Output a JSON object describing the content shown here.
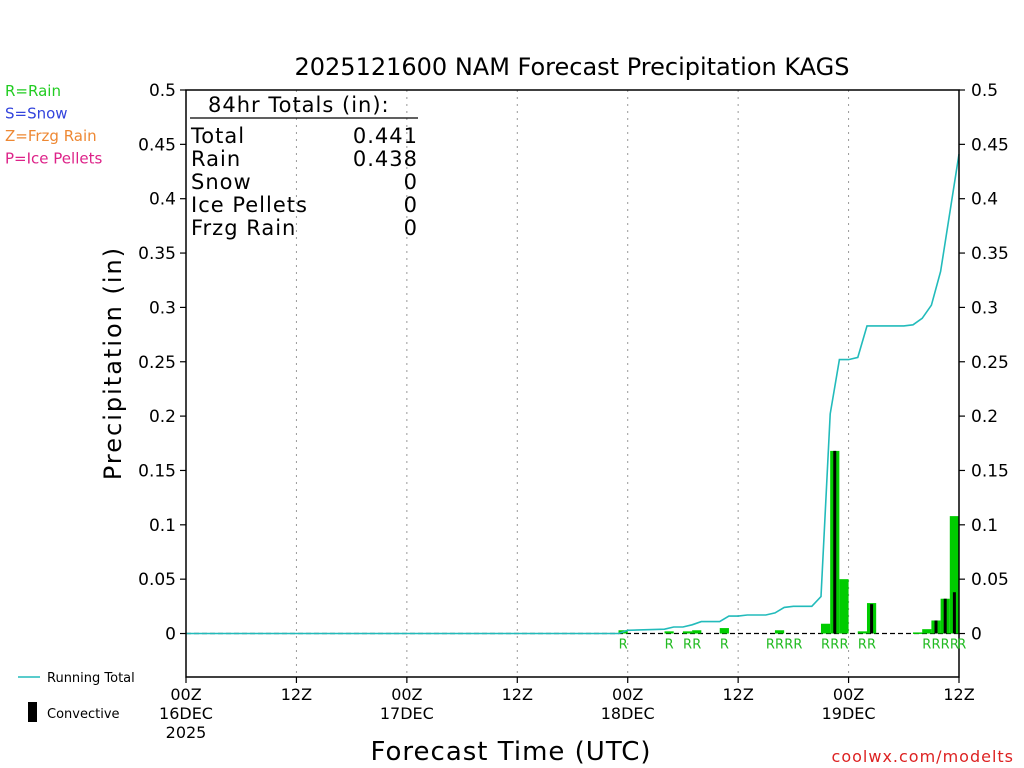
{
  "chart_data": {
    "type": "bar",
    "title": "2025121600 NAM Forecast Precipitation KAGS",
    "ylabel": "Precipitation (in)",
    "xlabel": "Forecast Time (UTC)",
    "ylim": [
      -0.04,
      0.5
    ],
    "xlim_hours": [
      0,
      84
    ],
    "yticks": [
      "0.5",
      "0.45",
      "0.4",
      "0.35",
      "0.3",
      "0.25",
      "0.2",
      "0.15",
      "0.1",
      "0.05",
      "0"
    ],
    "xticks": [
      {
        "hour": 0,
        "label": "00Z",
        "sub": "16DEC",
        "sub2": "2025",
        "grid": false
      },
      {
        "hour": 12,
        "label": "12Z",
        "sub": "",
        "sub2": "",
        "grid": true
      },
      {
        "hour": 24,
        "label": "00Z",
        "sub": "17DEC",
        "sub2": "",
        "grid": true
      },
      {
        "hour": 36,
        "label": "12Z",
        "sub": "",
        "sub2": "",
        "grid": true
      },
      {
        "hour": 48,
        "label": "00Z",
        "sub": "18DEC",
        "sub2": "",
        "grid": true
      },
      {
        "hour": 60,
        "label": "12Z",
        "sub": "",
        "sub2": "",
        "grid": true
      },
      {
        "hour": 72,
        "label": "00Z",
        "sub": "19DEC",
        "sub2": "",
        "grid": true
      },
      {
        "hour": 84,
        "label": "12Z",
        "sub": "",
        "sub2": "",
        "grid": false
      }
    ],
    "legend_types": [
      {
        "text": "R=Rain",
        "color": "#22cc22"
      },
      {
        "text": "S=Snow",
        "color": "#3344dd"
      },
      {
        "text": "Z=Frzg Rain",
        "color": "#ee8833"
      },
      {
        "text": "P=Ice Pellets",
        "color": "#dd2288"
      }
    ],
    "totals": {
      "title": "84hr Totals (in):",
      "rows": [
        {
          "label": "Total",
          "value": "0.441"
        },
        {
          "label": "Rain",
          "value": "0.438"
        },
        {
          "label": "Snow",
          "value": "0"
        },
        {
          "label": "Ice Pellets",
          "value": "0"
        },
        {
          "label": "Frzg Rain",
          "value": "0"
        }
      ]
    },
    "series": [
      {
        "name": "Running Total",
        "color": "#22bbbb",
        "points": [
          [
            0,
            0
          ],
          [
            47,
            0
          ],
          [
            48,
            0.003
          ],
          [
            52,
            0.004
          ],
          [
            53,
            0.006
          ],
          [
            54,
            0.006
          ],
          [
            55,
            0.008
          ],
          [
            56,
            0.011
          ],
          [
            58,
            0.011
          ],
          [
            59,
            0.016
          ],
          [
            60,
            0.016
          ],
          [
            61,
            0.017
          ],
          [
            63,
            0.017
          ],
          [
            64,
            0.019
          ],
          [
            65,
            0.024
          ],
          [
            66,
            0.025
          ],
          [
            68,
            0.025
          ],
          [
            69,
            0.034
          ],
          [
            70,
            0.202
          ],
          [
            71,
            0.252
          ],
          [
            72,
            0.252
          ],
          [
            73,
            0.254
          ],
          [
            74,
            0.283
          ],
          [
            78,
            0.283
          ],
          [
            79,
            0.284
          ],
          [
            80,
            0.29
          ],
          [
            81,
            0.302
          ],
          [
            82,
            0.333
          ],
          [
            84,
            0.441
          ]
        ]
      },
      {
        "name": "Convective",
        "color": "#000000"
      }
    ],
    "rain_bars": [
      {
        "hour": 47.5,
        "value": 0.003
      },
      {
        "hour": 52.5,
        "value": 0.002
      },
      {
        "hour": 54.5,
        "value": 0.002
      },
      {
        "hour": 55.5,
        "value": 0.003
      },
      {
        "hour": 58.5,
        "value": 0.005
      },
      {
        "hour": 64.5,
        "value": 0.003
      },
      {
        "hour": 69.5,
        "value": 0.009
      },
      {
        "hour": 70.5,
        "value": 0.168
      },
      {
        "hour": 71.5,
        "value": 0.05
      },
      {
        "hour": 73.5,
        "value": 0.002
      },
      {
        "hour": 74.5,
        "value": 0.028
      },
      {
        "hour": 79.5,
        "value": 0.001
      },
      {
        "hour": 80.5,
        "value": 0.004
      },
      {
        "hour": 81.5,
        "value": 0.012
      },
      {
        "hour": 82.5,
        "value": 0.032
      },
      {
        "hour": 83.5,
        "value": 0.108
      }
    ],
    "convective_bars": [
      {
        "hour": 70.5,
        "value": 0.168
      },
      {
        "hour": 74.5,
        "value": 0.027
      },
      {
        "hour": 81.5,
        "value": 0.012
      },
      {
        "hour": 82.5,
        "value": 0.032
      },
      {
        "hour": 83.5,
        "value": 0.038
      }
    ],
    "type_markers": [
      {
        "hour": 47.5,
        "text": "R"
      },
      {
        "hour": 52.5,
        "text": "R"
      },
      {
        "hour": 54.5,
        "text": "R"
      },
      {
        "hour": 55.5,
        "text": "R"
      },
      {
        "hour": 58.5,
        "text": "R"
      },
      {
        "hour": 63.5,
        "text": "R"
      },
      {
        "hour": 64.5,
        "text": "R"
      },
      {
        "hour": 65.5,
        "text": "R"
      },
      {
        "hour": 66.5,
        "text": "R"
      },
      {
        "hour": 69.5,
        "text": "R"
      },
      {
        "hour": 70.5,
        "text": "R"
      },
      {
        "hour": 71.5,
        "text": "R"
      },
      {
        "hour": 73.5,
        "text": "R"
      },
      {
        "hour": 74.5,
        "text": "R"
      },
      {
        "hour": 80.5,
        "text": "R"
      },
      {
        "hour": 81.5,
        "text": "R"
      },
      {
        "hour": 82.5,
        "text": "R"
      },
      {
        "hour": 83.5,
        "text": "R"
      },
      {
        "hour": 84.3,
        "text": "R"
      }
    ],
    "bottom_legend": [
      {
        "text": "Running Total",
        "kind": "line",
        "color": "#22bbbb"
      },
      {
        "text": "Convective",
        "kind": "bar",
        "color": "#000000"
      }
    ],
    "credit": "coolwx.com/modelts",
    "rain_color": "#00cc00",
    "label_color": "#22bb22"
  }
}
